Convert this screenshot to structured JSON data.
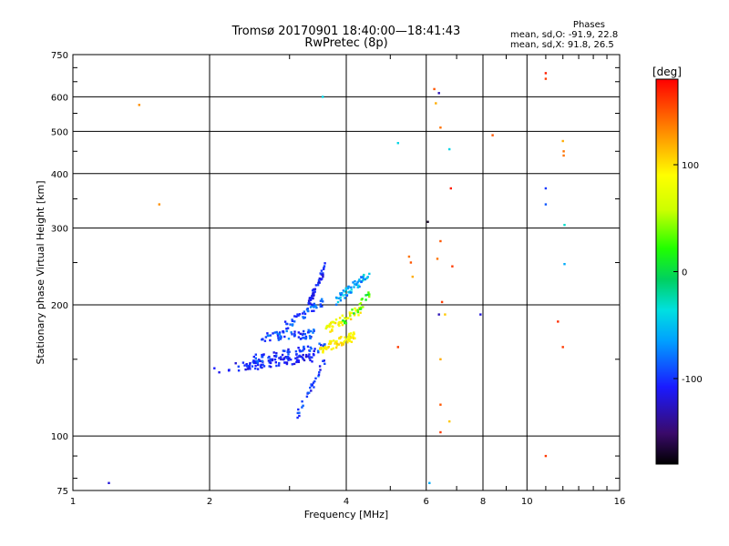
{
  "header": {
    "title_line1": "Tromsø 20170901 18:40:00—18:41:43",
    "title_line2": "RwPretec (8p)",
    "phase_title": "Phases",
    "phase_o": "mean, sd,O: -91.9, 22.8",
    "phase_x": "mean, sd,X:  91.8, 26.5"
  },
  "chart_data": {
    "type": "scatter",
    "xlabel": "Frequency [MHz]",
    "ylabel": "Stationary phase Virtual Height [km]",
    "xscale": "log",
    "yscale": "log",
    "xlim": [
      1,
      16
    ],
    "ylim": [
      75,
      750
    ],
    "x_ticks": [
      1,
      2,
      4,
      6,
      8,
      10,
      16
    ],
    "y_ticks": [
      75,
      100,
      200,
      300,
      400,
      500,
      600,
      750
    ],
    "grid": true,
    "colorbar": {
      "label": "[deg]",
      "range": [
        -180,
        180
      ],
      "ticks": [
        -100,
        0,
        100
      ]
    },
    "points": [
      [
        1.2,
        78,
        -120
      ],
      [
        1.4,
        575,
        130
      ],
      [
        1.55,
        340,
        130
      ],
      [
        2.05,
        143,
        -110
      ],
      [
        2.1,
        140,
        -115
      ],
      [
        6.05,
        310,
        -170
      ],
      [
        6.1,
        78,
        -60
      ],
      [
        5.2,
        470,
        -40
      ],
      [
        5.2,
        160,
        160
      ],
      [
        5.5,
        258,
        140
      ],
      [
        5.55,
        250,
        150
      ],
      [
        5.6,
        232,
        120
      ],
      [
        6.25,
        625,
        150
      ],
      [
        6.3,
        580,
        120
      ],
      [
        6.35,
        255,
        140
      ],
      [
        6.4,
        612,
        -130
      ],
      [
        6.45,
        510,
        140
      ],
      [
        6.45,
        280,
        150
      ],
      [
        6.5,
        203,
        160
      ],
      [
        6.4,
        190,
        -130
      ],
      [
        6.45,
        150,
        120
      ],
      [
        6.45,
        118,
        150
      ],
      [
        6.45,
        102,
        160
      ],
      [
        6.6,
        190,
        110
      ],
      [
        6.75,
        455,
        -40
      ],
      [
        6.8,
        370,
        170
      ],
      [
        6.85,
        245,
        160
      ],
      [
        6.75,
        108,
        110
      ],
      [
        7.9,
        190,
        -120
      ],
      [
        8.4,
        490,
        150
      ],
      [
        11.0,
        680,
        170
      ],
      [
        11.0,
        660,
        160
      ],
      [
        11.0,
        370,
        -100
      ],
      [
        11.0,
        340,
        -90
      ],
      [
        11.0,
        90,
        160
      ],
      [
        11.7,
        183,
        165
      ],
      [
        12.0,
        475,
        120
      ],
      [
        12.05,
        450,
        140
      ],
      [
        12.05,
        440,
        140
      ],
      [
        12.1,
        305,
        -30
      ],
      [
        12.1,
        248,
        -60
      ],
      [
        12.0,
        160,
        160
      ],
      [
        3.55,
        600,
        -40
      ]
    ]
  }
}
